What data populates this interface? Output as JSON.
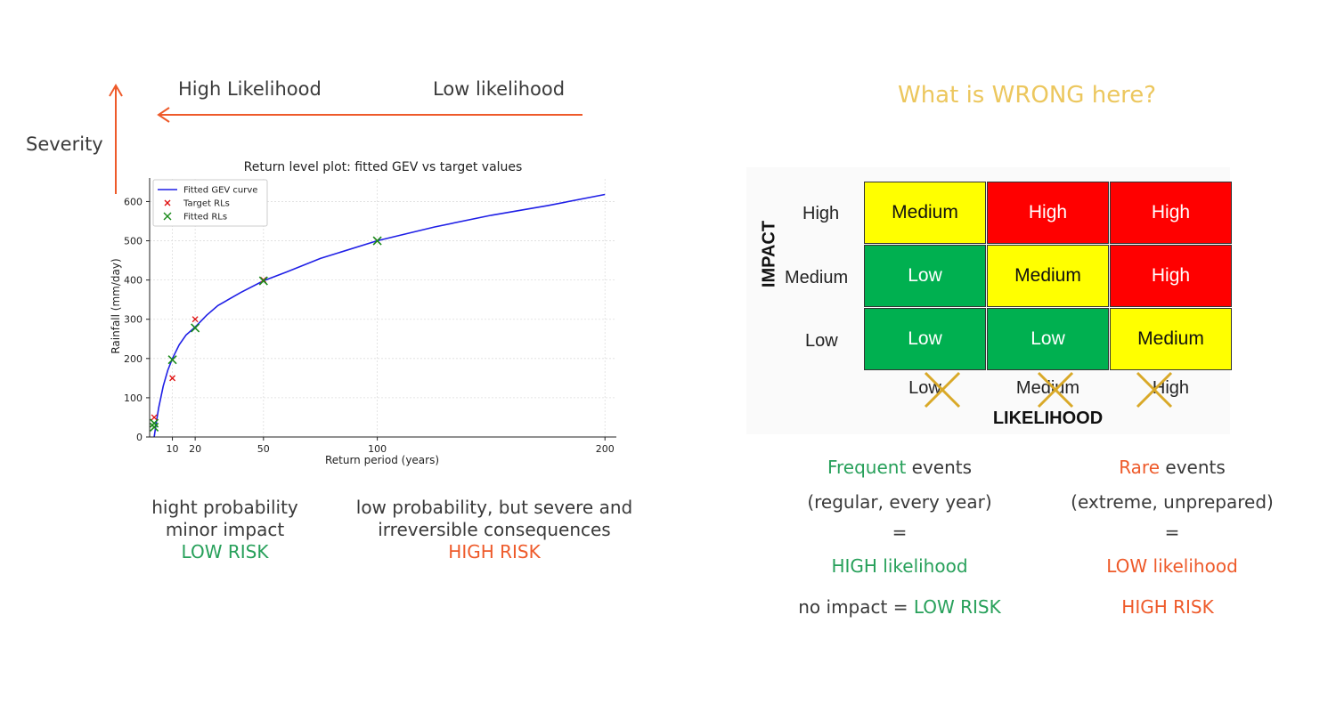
{
  "left": {
    "high_likelihood": "High Likelihood",
    "low_likelihood": "Low likelihood",
    "severity": "Severity",
    "caption_left": {
      "line1": "hight probability",
      "line2": "minor impact",
      "risk": "LOW RISK"
    },
    "caption_right": {
      "line1": "low probability, but severe and",
      "line2": "irreversible consequences",
      "risk": "HIGH RISK"
    }
  },
  "chart_data": {
    "type": "line",
    "title": "Return level plot: fitted GEV vs target values",
    "xlabel": "Return period (years)",
    "ylabel": "Rainfall (mm/day)",
    "xlim": [
      0,
      205
    ],
    "ylim": [
      0,
      660
    ],
    "xticks": [
      10,
      20,
      50,
      100,
      200
    ],
    "yticks": [
      0,
      100,
      200,
      300,
      400,
      500,
      600
    ],
    "grid": true,
    "legend_position": "top-left",
    "series": [
      {
        "name": "Fitted GEV curve",
        "kind": "line",
        "color": "#1f1fe6",
        "x": [
          2,
          3,
          4,
          6,
          8,
          10,
          13,
          16,
          20,
          25,
          30,
          40,
          50,
          60,
          75,
          100,
          125,
          150,
          175,
          200
        ],
        "y": [
          0,
          40,
          75,
          130,
          170,
          200,
          235,
          260,
          280,
          310,
          335,
          368,
          398,
          420,
          455,
          500,
          535,
          565,
          590,
          618
        ]
      },
      {
        "name": "Target RLs",
        "kind": "marker",
        "color": "#e01010",
        "x": [
          2,
          10,
          20,
          50,
          100
        ],
        "y": [
          50,
          150,
          300,
          400,
          500
        ]
      },
      {
        "name": "Fitted RLs",
        "kind": "marker",
        "color": "#1a8a1a",
        "x": [
          2,
          2,
          10,
          20,
          50,
          100
        ],
        "y": [
          25,
          35,
          197,
          278,
          398,
          500
        ]
      }
    ]
  },
  "right": {
    "question": "What is WRONG here?",
    "matrix": {
      "y_axis": "IMPACT",
      "x_axis": "LIKELIHOOD",
      "row_labels": [
        "High",
        "Medium",
        "Low"
      ],
      "col_labels": [
        "Low",
        "Medium",
        "High"
      ],
      "cells": [
        [
          {
            "text": "Medium",
            "color": "#ffff00"
          },
          {
            "text": "High",
            "color": "#ff0000"
          },
          {
            "text": "High",
            "color": "#ff0000"
          }
        ],
        [
          {
            "text": "Low",
            "color": "#00b050"
          },
          {
            "text": "Medium",
            "color": "#ffff00"
          },
          {
            "text": "High",
            "color": "#ff0000"
          }
        ],
        [
          {
            "text": "Low",
            "color": "#00b050"
          },
          {
            "text": "Low",
            "color": "#00b050"
          },
          {
            "text": "Medium",
            "color": "#ffff00"
          }
        ]
      ]
    },
    "frequent": {
      "word": "Frequent",
      "rest": " events",
      "sub": "(regular, every year)",
      "eq": "=",
      "likelihood": "HIGH likelihood",
      "impact_prefix": "no impact = ",
      "risk": "LOW RISK"
    },
    "rare": {
      "word": "Rare",
      "rest": " events",
      "sub": "(extreme, unprepared)",
      "eq": "=",
      "likelihood": "LOW likelihood",
      "risk": "HIGH RISK"
    }
  }
}
